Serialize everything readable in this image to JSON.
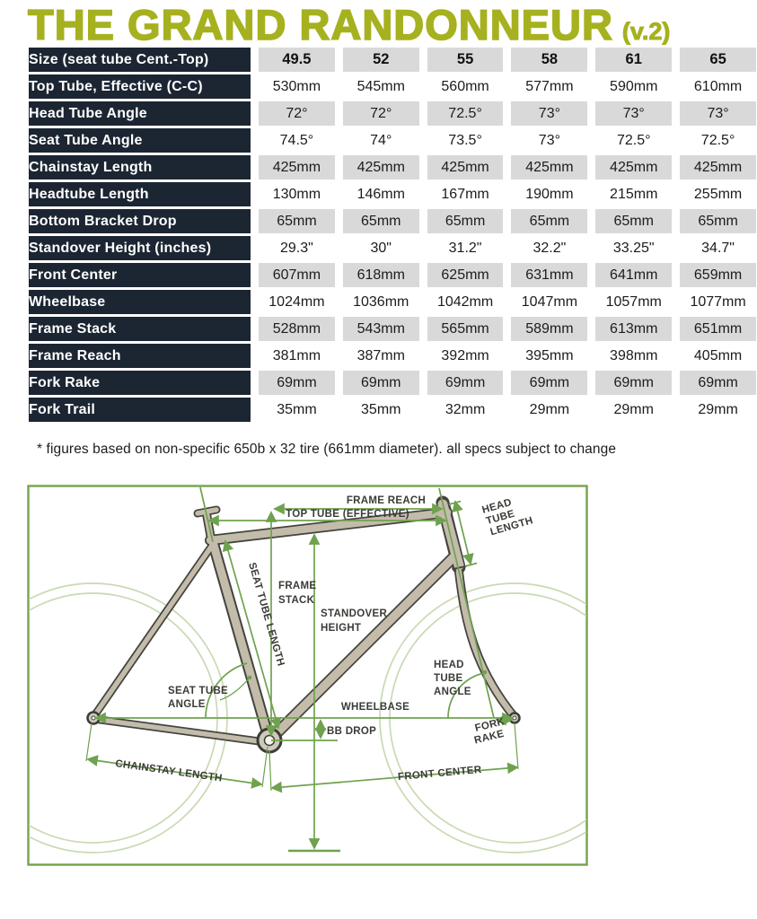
{
  "title": {
    "main": "THE GRAND RANDONNEUR",
    "version": "(v.2)"
  },
  "table": {
    "header_label": "Size (seat tube Cent.-Top)",
    "sizes": [
      "49.5",
      "52",
      "55",
      "58",
      "61",
      "65"
    ],
    "rows": [
      {
        "label": "Top Tube, Effective (C-C)",
        "values": [
          "530mm",
          "545mm",
          "560mm",
          "577mm",
          "590mm",
          "610mm"
        ]
      },
      {
        "label": "Head Tube Angle",
        "values": [
          "72°",
          "72°",
          "72.5°",
          "73°",
          "73°",
          "73°"
        ]
      },
      {
        "label": "Seat Tube Angle",
        "values": [
          "74.5°",
          "74°",
          "73.5°",
          "73°",
          "72.5°",
          "72.5°"
        ]
      },
      {
        "label": "Chainstay Length",
        "values": [
          "425mm",
          "425mm",
          "425mm",
          "425mm",
          "425mm",
          "425mm"
        ]
      },
      {
        "label": "Headtube Length",
        "values": [
          "130mm",
          "146mm",
          "167mm",
          "190mm",
          "215mm",
          "255mm"
        ]
      },
      {
        "label": "Bottom Bracket Drop",
        "values": [
          "65mm",
          "65mm",
          "65mm",
          "65mm",
          "65mm",
          "65mm"
        ]
      },
      {
        "label": "Standover Height (inches)",
        "values": [
          "29.3\"",
          "30\"",
          "31.2\"",
          "32.2\"",
          "33.25\"",
          "34.7\""
        ]
      },
      {
        "label": "Front Center",
        "values": [
          "607mm",
          "618mm",
          "625mm",
          "631mm",
          "641mm",
          "659mm"
        ]
      },
      {
        "label": "Wheelbase",
        "values": [
          "1024mm",
          "1036mm",
          "1042mm",
          "1047mm",
          "1057mm",
          "1077mm"
        ]
      },
      {
        "label": "Frame Stack",
        "values": [
          "528mm",
          "543mm",
          "565mm",
          "589mm",
          "613mm",
          "651mm"
        ]
      },
      {
        "label": "Frame Reach",
        "values": [
          "381mm",
          "387mm",
          "392mm",
          "395mm",
          "398mm",
          "405mm"
        ]
      },
      {
        "label": "Fork Rake",
        "values": [
          "69mm",
          "69mm",
          "69mm",
          "69mm",
          "69mm",
          "69mm"
        ]
      },
      {
        "label": "Fork Trail",
        "values": [
          "35mm",
          "35mm",
          "32mm",
          "29mm",
          "29mm",
          "29mm"
        ]
      }
    ]
  },
  "footnote": "* figures based on non-specific 650b x 32 tire (661mm diameter). all specs subject to change",
  "diagram": {
    "labels": {
      "frame_reach": "FRAME REACH",
      "top_tube": "TOP TUBE (EFFECTIVE)",
      "head_tube_length": [
        "HEAD",
        "TUBE",
        "LENGTH"
      ],
      "frame_stack": [
        "FRAME",
        "STACK"
      ],
      "standover": [
        "STANDOVER",
        "HEIGHT"
      ],
      "seat_tube_length": "SEAT TUBE LENGTH",
      "seat_tube_angle": [
        "SEAT TUBE",
        "ANGLE"
      ],
      "head_tube_angle": [
        "HEAD",
        "TUBE",
        "ANGLE"
      ],
      "wheelbase": "WHEELBASE",
      "bb_drop": "BB DROP",
      "chainstay_length": "CHAINSTAY LENGTH",
      "front_center": "FRONT CENTER",
      "fork_rake": [
        "FORK",
        "RAKE"
      ]
    }
  },
  "colors": {
    "title_olive": "#a6b11f",
    "header_navy": "#1c2532",
    "cell_gray": "#d9d9d9",
    "dim_green": "#6fa24e",
    "wheel_green": "#c8dab3",
    "frame_tan": "#c3bcab",
    "frame_outline": "#44443e"
  },
  "chart_data": {
    "type": "table",
    "title": "THE GRAND RANDONNEUR (v.2)",
    "columns": [
      "49.5",
      "52",
      "55",
      "58",
      "61",
      "65"
    ],
    "row_header": "Size (seat tube Cent.-Top)",
    "rows": [
      {
        "label": "Top Tube, Effective (C-C)",
        "values": [
          "530mm",
          "545mm",
          "560mm",
          "577mm",
          "590mm",
          "610mm"
        ]
      },
      {
        "label": "Head Tube Angle",
        "values": [
          "72°",
          "72°",
          "72.5°",
          "73°",
          "73°",
          "73°"
        ]
      },
      {
        "label": "Seat Tube Angle",
        "values": [
          "74.5°",
          "74°",
          "73.5°",
          "73°",
          "72.5°",
          "72.5°"
        ]
      },
      {
        "label": "Chainstay Length",
        "values": [
          "425mm",
          "425mm",
          "425mm",
          "425mm",
          "425mm",
          "425mm"
        ]
      },
      {
        "label": "Headtube Length",
        "values": [
          "130mm",
          "146mm",
          "167mm",
          "190mm",
          "215mm",
          "255mm"
        ]
      },
      {
        "label": "Bottom Bracket Drop",
        "values": [
          "65mm",
          "65mm",
          "65mm",
          "65mm",
          "65mm",
          "65mm"
        ]
      },
      {
        "label": "Standover Height (inches)",
        "values": [
          "29.3\"",
          "30\"",
          "31.2\"",
          "32.2\"",
          "33.25\"",
          "34.7\""
        ]
      },
      {
        "label": "Front Center",
        "values": [
          "607mm",
          "618mm",
          "625mm",
          "631mm",
          "641mm",
          "659mm"
        ]
      },
      {
        "label": "Wheelbase",
        "values": [
          "1024mm",
          "1036mm",
          "1042mm",
          "1047mm",
          "1057mm",
          "1077mm"
        ]
      },
      {
        "label": "Frame Stack",
        "values": [
          "528mm",
          "543mm",
          "565mm",
          "589mm",
          "613mm",
          "651mm"
        ]
      },
      {
        "label": "Frame Reach",
        "values": [
          "381mm",
          "387mm",
          "392mm",
          "395mm",
          "398mm",
          "405mm"
        ]
      },
      {
        "label": "Fork Rake",
        "values": [
          "69mm",
          "69mm",
          "69mm",
          "69mm",
          "69mm",
          "69mm"
        ]
      },
      {
        "label": "Fork Trail",
        "values": [
          "35mm",
          "35mm",
          "32mm",
          "29mm",
          "29mm",
          "29mm"
        ]
      }
    ]
  }
}
